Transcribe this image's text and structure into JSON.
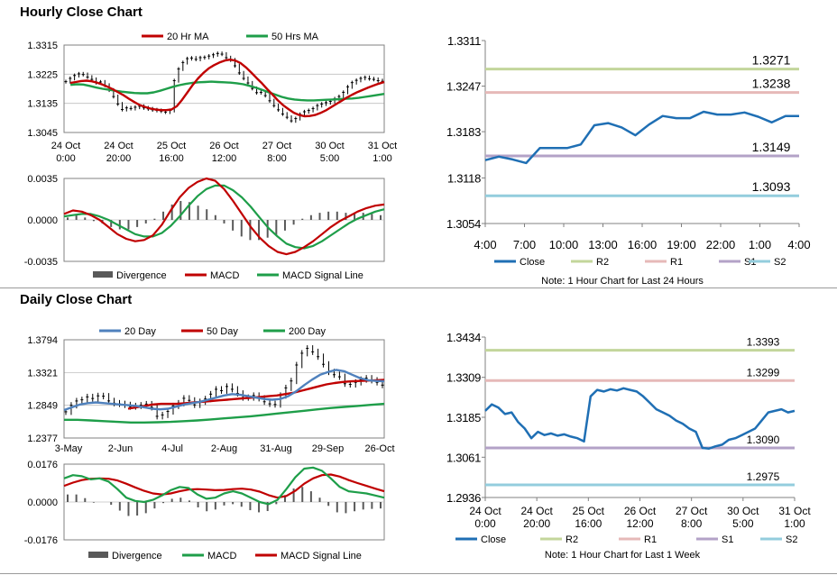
{
  "sections": {
    "hourly_title": "Hourly Close Chart",
    "daily_title": "Daily Close Chart"
  },
  "chart_data": [
    {
      "id": "hourly_price",
      "type": "line",
      "ylim": [
        1.3045,
        1.3315
      ],
      "yticks": [
        "1.3315",
        "1.3225",
        "1.3135",
        "1.3045"
      ],
      "xticks": [
        "24 Oct\n0:00",
        "24 Oct\n20:00",
        "25 Oct\n16:00",
        "26 Oct\n12:00",
        "27 Oct\n8:00",
        "30 Oct\n5:00",
        "31 Oct\n1:00"
      ],
      "legend": [
        "20 Hr MA",
        "50 Hrs MA"
      ],
      "colors": {
        "20 Hr MA": "#c00000",
        "50 Hrs MA": "#1e9e49",
        "price": "#000000"
      },
      "price": [
        1.3202,
        1.3212,
        1.3221,
        1.3226,
        1.3224,
        1.3216,
        1.3209,
        1.3199,
        1.3201,
        1.3191,
        1.3176,
        1.3156,
        1.3133,
        1.3116,
        1.3121,
        1.3119,
        1.3123,
        1.3126,
        1.3121,
        1.3118,
        1.3115,
        1.3113,
        1.3111,
        1.3108,
        1.3113,
        1.3205,
        1.3241,
        1.3261,
        1.3273,
        1.3275,
        1.3271,
        1.3276,
        1.3277,
        1.3281,
        1.3285,
        1.3289,
        1.3287,
        1.3276,
        1.3269,
        1.3251,
        1.3229,
        1.3212,
        1.3198,
        1.3181,
        1.3168,
        1.3169,
        1.3159,
        1.3143,
        1.3128,
        1.3115,
        1.3102,
        1.3092,
        1.3081,
        1.3088,
        1.3101,
        1.3109,
        1.3113,
        1.3119,
        1.3128,
        1.3133,
        1.3137,
        1.3141,
        1.3149,
        1.3156,
        1.3169,
        1.3186,
        1.3199,
        1.3206,
        1.3212,
        1.3215,
        1.3211,
        1.3209,
        1.3205,
        1.3203
      ],
      "ma20": [
        1.3198,
        1.3201,
        1.3204,
        1.3205,
        1.3203,
        1.3199,
        1.3193,
        1.3186,
        1.3178,
        1.3169,
        1.316,
        1.3149,
        1.3139,
        1.313,
        1.3124,
        1.3119,
        1.3116,
        1.3114,
        1.3114,
        1.3116,
        1.3126,
        1.3146,
        1.3169,
        1.3192,
        1.3212,
        1.3229,
        1.3243,
        1.3253,
        1.3261,
        1.3267,
        1.327,
        1.3267,
        1.3259,
        1.3246,
        1.323,
        1.3213,
        1.3197,
        1.3179,
        1.3162,
        1.3144,
        1.3129,
        1.3117,
        1.3106,
        1.3099,
        1.3095,
        1.3096,
        1.3099,
        1.3105,
        1.3113,
        1.3123,
        1.3133,
        1.3143,
        1.3153,
        1.3162,
        1.317,
        1.3177,
        1.3184,
        1.319,
        1.3196,
        1.3201
      ],
      "ma50": [
        1.3192,
        1.3194,
        1.3193,
        1.3189,
        1.3184,
        1.318,
        1.3177,
        1.3174,
        1.3171,
        1.3169,
        1.3167,
        1.3166,
        1.3166,
        1.3169,
        1.3174,
        1.318,
        1.3186,
        1.3191,
        1.3195,
        1.3198,
        1.32,
        1.3201,
        1.3202,
        1.3201,
        1.32,
        1.3199,
        1.3197,
        1.3194,
        1.3189,
        1.3183,
        1.3176,
        1.3169,
        1.3162,
        1.3155,
        1.315,
        1.3147,
        1.3145,
        1.3144,
        1.3144,
        1.3145,
        1.3146,
        1.3147,
        1.3148,
        1.3149,
        1.315,
        1.3152,
        1.3155,
        1.3158,
        1.3161,
        1.3164
      ]
    },
    {
      "id": "hourly_macd",
      "type": "line",
      "ylim": [
        -0.0035,
        0.0035
      ],
      "yticks": [
        "0.0035",
        "0.0000",
        "-0.0035"
      ],
      "legend": [
        "Divergence",
        "MACD",
        "MACD Signal Line"
      ],
      "colors": {
        "Divergence": "#595959",
        "MACD": "#c00000",
        "MACD Signal Line": "#1e9e49"
      },
      "macd": [
        0.0005,
        0.0008,
        0.0007,
        0.0004,
        0.0,
        -0.0006,
        -0.0012,
        -0.0016,
        -0.0018,
        -0.0017,
        -0.0013,
        -0.0004,
        0.0008,
        0.0019,
        0.0027,
        0.0032,
        0.0035,
        0.0033,
        0.0026,
        0.0016,
        0.0005,
        -0.0006,
        -0.0015,
        -0.0022,
        -0.0027,
        -0.0029,
        -0.0027,
        -0.0023,
        -0.0018,
        -0.0012,
        -0.0006,
        -0.0001,
        0.0003,
        0.0007,
        0.001,
        0.0012,
        0.0013
      ],
      "signal": [
        0.0003,
        0.0004,
        0.0005,
        0.0005,
        0.0003,
        0.0,
        -0.0004,
        -0.0008,
        -0.0012,
        -0.0014,
        -0.0014,
        -0.0011,
        -0.0005,
        0.0003,
        0.0012,
        0.002,
        0.0026,
        0.0029,
        0.0029,
        0.0025,
        0.0019,
        0.0011,
        0.0002,
        -0.0007,
        -0.0014,
        -0.002,
        -0.0023,
        -0.0024,
        -0.0022,
        -0.0018,
        -0.0013,
        -0.0008,
        -0.0003,
        0.0001,
        0.0004,
        0.0007,
        0.0009
      ]
    },
    {
      "id": "hourly_pivots",
      "type": "line",
      "ylim": [
        1.3054,
        1.3311
      ],
      "yticks": [
        "1.3311",
        "1.3247",
        "1.3183",
        "1.3118",
        "1.3054"
      ],
      "xticks": [
        "4:00",
        "7:00",
        "10:00",
        "13:00",
        "16:00",
        "19:00",
        "22:00",
        "1:00",
        "4:00"
      ],
      "levels": [
        {
          "name": "R2",
          "value": 1.3271,
          "label": "1.3271",
          "color": "#c3d69b"
        },
        {
          "name": "R1",
          "value": 1.3238,
          "label": "1.3238",
          "color": "#e6b9b8"
        },
        {
          "name": "S1",
          "value": 1.3149,
          "label": "1.3149",
          "color": "#b3a2c7"
        },
        {
          "name": "S2",
          "value": 1.3093,
          "label": "1.3093",
          "color": "#93cddd"
        }
      ],
      "close_color": "#1f6fb4",
      "close": [
        1.3143,
        1.3148,
        1.3144,
        1.3139,
        1.316,
        1.316,
        1.316,
        1.3165,
        1.3192,
        1.3195,
        1.3189,
        1.3178,
        1.3193,
        1.3205,
        1.3202,
        1.3202,
        1.3211,
        1.3207,
        1.3207,
        1.321,
        1.3204,
        1.3196,
        1.3205,
        1.3205
      ],
      "legend": [
        "Close",
        "R2",
        "R1",
        "S1",
        "S2"
      ],
      "note": "Note: 1 Hour Chart for Last 24 Hours"
    },
    {
      "id": "daily_price",
      "type": "line",
      "ylim": [
        1.2377,
        1.3794
      ],
      "yticks": [
        "1.3794",
        "1.3321",
        "1.2849",
        "1.2377"
      ],
      "xticks": [
        "3-May",
        "2-Jun",
        "4-Jul",
        "2-Aug",
        "31-Aug",
        "29-Sep",
        "26-Oct"
      ],
      "legend": [
        "20 Day",
        "50 Day",
        "200 Day"
      ],
      "colors": {
        "20 Day": "#4f81bd",
        "50 Day": "#c00000",
        "200 Day": "#1e9e49",
        "price": "#000000"
      },
      "price": [
        1.2755,
        1.2849,
        1.2911,
        1.2928,
        1.297,
        1.2947,
        1.2985,
        1.298,
        1.2912,
        1.288,
        1.287,
        1.2855,
        1.283,
        1.284,
        1.285,
        1.2866,
        1.282,
        1.269,
        1.271,
        1.276,
        1.284,
        1.288,
        1.295,
        1.292,
        1.2855,
        1.29,
        1.294,
        1.301,
        1.308,
        1.306,
        1.312,
        1.308,
        1.302,
        1.296,
        1.296,
        1.299,
        1.295,
        1.29,
        1.287,
        1.286,
        1.299,
        1.31,
        1.32,
        1.343,
        1.36,
        1.367,
        1.362,
        1.355,
        1.344,
        1.333,
        1.329,
        1.326,
        1.316,
        1.315,
        1.318,
        1.322,
        1.324,
        1.321,
        1.318,
        1.314
      ],
      "ma20": [
        1.278,
        1.282,
        1.286,
        1.288,
        1.289,
        1.288,
        1.287,
        1.286,
        1.285,
        1.284,
        1.282,
        1.28,
        1.279,
        1.28,
        1.283,
        1.286,
        1.288,
        1.29,
        1.293,
        1.296,
        1.299,
        1.301,
        1.3,
        1.298,
        1.296,
        1.294,
        1.293,
        1.294,
        1.298,
        1.305,
        1.314,
        1.322,
        1.329,
        1.333,
        1.336,
        1.334,
        1.329,
        1.324,
        1.321,
        1.32,
        1.3195
      ],
      "ma50": [
        1.28,
        1.282,
        1.284,
        1.286,
        1.287,
        1.287,
        1.287,
        1.288,
        1.289,
        1.29,
        1.291,
        1.292,
        1.293,
        1.294,
        1.295,
        1.296,
        1.297,
        1.298,
        1.299,
        1.301,
        1.303,
        1.306,
        1.309,
        1.312,
        1.315,
        1.317,
        1.3185,
        1.3195,
        1.32,
        1.3205,
        1.321,
        1.3215
      ],
      "ma200": [
        1.264,
        1.264,
        1.263,
        1.262,
        1.261,
        1.26,
        1.26,
        1.2605,
        1.261,
        1.262,
        1.263,
        1.2645,
        1.266,
        1.2675,
        1.269,
        1.271,
        1.273,
        1.275,
        1.277,
        1.279,
        1.281,
        1.2825,
        1.284,
        1.2855,
        1.287
      ]
    },
    {
      "id": "daily_macd",
      "type": "line",
      "ylim": [
        -0.0176,
        0.0176
      ],
      "yticks": [
        "0.0176",
        "0.0000",
        "-0.0176"
      ],
      "legend": [
        "Divergence",
        "MACD",
        "MACD Signal Line"
      ],
      "colors": {
        "Divergence": "#595959",
        "MACD": "#1e9e49",
        "MACD Signal Line": "#c00000"
      },
      "macd": [
        0.011,
        0.0125,
        0.012,
        0.0105,
        0.011,
        0.0095,
        0.006,
        0.002,
        0.0005,
        0.0,
        0.001,
        0.003,
        0.0055,
        0.007,
        0.0065,
        0.0035,
        0.0015,
        0.002,
        0.004,
        0.005,
        0.004,
        0.002,
        0.0,
        -0.001,
        0.001,
        0.006,
        0.0115,
        0.0155,
        0.016,
        0.0145,
        0.011,
        0.007,
        0.005,
        0.0045,
        0.004,
        0.003,
        0.002
      ],
      "signal": [
        0.0075,
        0.009,
        0.0102,
        0.0108,
        0.011,
        0.0108,
        0.01,
        0.0085,
        0.0068,
        0.0052,
        0.004,
        0.0035,
        0.004,
        0.005,
        0.0058,
        0.006,
        0.0058,
        0.0055,
        0.0056,
        0.006,
        0.0062,
        0.0058,
        0.0048,
        0.0032,
        0.002,
        0.0028,
        0.0052,
        0.0085,
        0.011,
        0.0125,
        0.0128,
        0.0118,
        0.0102,
        0.0088,
        0.0075,
        0.0062,
        0.005
      ],
      "divergence": [
        0.0035,
        0.0035,
        0.0018,
        -0.0003,
        0.0,
        -0.0013,
        -0.004,
        -0.0065,
        -0.0063,
        -0.0052,
        -0.003,
        -0.0005,
        0.0015,
        0.002,
        0.0007,
        -0.0025,
        -0.0043,
        -0.0035,
        -0.0016,
        -0.001,
        -0.0022,
        -0.0038,
        -0.0048,
        -0.0042,
        -0.001,
        0.0032,
        0.0063,
        0.007,
        0.005,
        0.002,
        -0.0018,
        -0.0048,
        -0.0052,
        -0.0043,
        -0.0035,
        -0.0032,
        -0.003
      ]
    },
    {
      "id": "weekly_pivots",
      "type": "line",
      "ylim": [
        1.2936,
        1.3434
      ],
      "yticks": [
        "1.3434",
        "1.3309",
        "1.3185",
        "1.3061",
        "1.2936"
      ],
      "xticks": [
        "24 Oct\n0:00",
        "24 Oct\n20:00",
        "25 Oct\n16:00",
        "26 Oct\n12:00",
        "27 Oct\n8:00",
        "30 Oct\n5:00",
        "31 Oct\n1:00"
      ],
      "levels": [
        {
          "name": "R2",
          "value": 1.3393,
          "label": "1.3393",
          "color": "#c3d69b"
        },
        {
          "name": "R1",
          "value": 1.3299,
          "label": "1.3299",
          "color": "#e6b9b8"
        },
        {
          "name": "S1",
          "value": 1.309,
          "label": "1.3090",
          "color": "#b3a2c7"
        },
        {
          "name": "S2",
          "value": 1.2975,
          "label": "1.2975",
          "color": "#93cddd"
        }
      ],
      "close_color": "#1f6fb4",
      "close": [
        1.3205,
        1.3225,
        1.3215,
        1.3195,
        1.32,
        1.317,
        1.315,
        1.312,
        1.314,
        1.313,
        1.3135,
        1.3128,
        1.3132,
        1.3125,
        1.312,
        1.311,
        1.325,
        1.327,
        1.3265,
        1.3272,
        1.3268,
        1.3275,
        1.327,
        1.3265,
        1.325,
        1.323,
        1.321,
        1.32,
        1.319,
        1.3175,
        1.3165,
        1.315,
        1.314,
        1.309,
        1.3088,
        1.3095,
        1.31,
        1.3115,
        1.312,
        1.313,
        1.314,
        1.315,
        1.3175,
        1.32,
        1.3205,
        1.321,
        1.32,
        1.3205
      ],
      "legend": [
        "Close",
        "R2",
        "R1",
        "S1",
        "S2"
      ],
      "note": "Note: 1 Hour Chart for Last 1 Week"
    }
  ]
}
